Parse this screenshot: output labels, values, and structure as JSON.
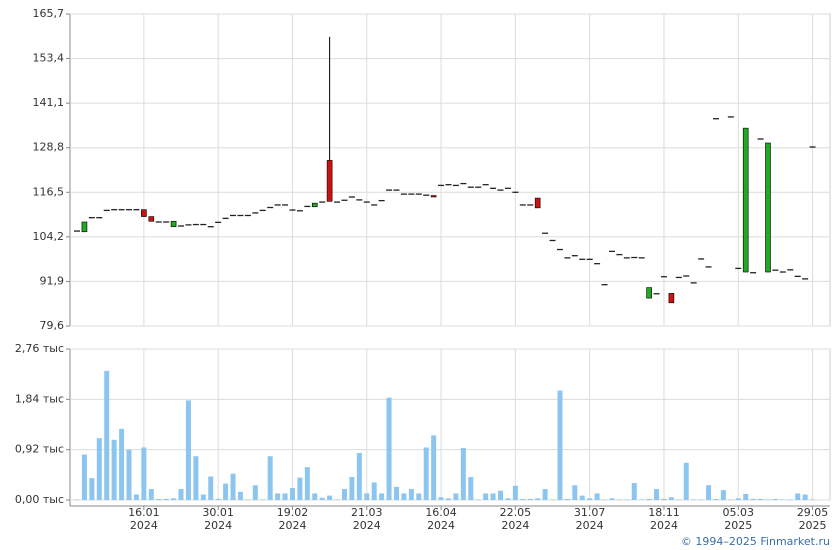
{
  "chart_data": [
    {
      "type": "candlestick",
      "open": [
        105.8,
        105.6,
        109.5,
        109.5,
        111.5,
        111.7,
        111.7,
        111.7,
        111.7,
        111.7,
        109.8,
        108.3,
        108.3,
        107.0,
        107.2,
        107.5,
        107.6,
        107.6,
        107.0,
        108.2,
        109.3,
        110.1,
        110.1,
        110.1,
        110.8,
        111.5,
        112.3,
        113.0,
        113.0,
        111.6,
        111.4,
        112.6,
        112.5,
        113.8,
        125.3,
        113.8,
        114.3,
        115.2,
        114.4,
        113.8,
        113.0,
        114.2,
        117.1,
        117.1,
        116.0,
        116.0,
        116.0,
        115.7,
        115.6,
        118.4,
        118.6,
        118.4,
        118.9,
        117.9,
        117.9,
        118.6,
        117.6,
        117.1,
        117.6,
        116.5,
        113.0,
        113.0,
        114.9,
        105.2,
        103.2,
        100.7,
        98.4,
        99.0,
        98.0,
        98.0,
        96.8,
        91.0,
        100.2,
        99.3,
        98.4,
        98.5,
        98.4,
        87.3,
        88.5,
        93.2,
        88.6,
        93.0,
        93.4,
        91.5,
        98.1,
        95.9,
        136.8,
        null,
        137.3,
        95.5,
        94.5,
        94.3,
        131.2,
        94.5,
        95.0,
        94.5,
        95.1,
        93.3,
        92.6,
        129.0
      ],
      "high": [
        105.8,
        108.3,
        109.5,
        109.5,
        111.5,
        111.7,
        111.7,
        111.7,
        111.7,
        111.7,
        109.8,
        108.3,
        108.3,
        108.5,
        107.2,
        107.5,
        107.6,
        107.6,
        107.0,
        108.2,
        109.3,
        110.1,
        110.1,
        110.1,
        110.8,
        111.5,
        112.3,
        113.0,
        113.0,
        111.6,
        111.4,
        112.6,
        113.5,
        113.8,
        159.4,
        113.8,
        114.3,
        115.2,
        114.4,
        113.8,
        113.0,
        114.2,
        117.1,
        117.1,
        116.0,
        116.0,
        116.0,
        115.7,
        115.6,
        118.4,
        118.6,
        118.4,
        118.9,
        117.9,
        117.9,
        118.6,
        117.6,
        117.1,
        117.6,
        116.5,
        113.0,
        113.0,
        114.9,
        105.2,
        103.2,
        100.7,
        98.4,
        99.0,
        98.0,
        98.0,
        96.8,
        91.0,
        100.2,
        99.3,
        98.4,
        98.5,
        98.4,
        90.2,
        88.5,
        93.2,
        88.6,
        93.0,
        93.4,
        91.5,
        98.1,
        95.9,
        136.8,
        null,
        137.3,
        95.5,
        134.2,
        94.3,
        131.2,
        130.1,
        95.0,
        94.5,
        95.1,
        93.3,
        92.6,
        129.0
      ],
      "low": [
        105.8,
        105.6,
        109.5,
        109.5,
        111.5,
        111.7,
        111.7,
        111.7,
        111.7,
        109.8,
        108.5,
        108.3,
        108.3,
        107.0,
        107.2,
        107.5,
        107.6,
        107.6,
        107.0,
        108.2,
        109.3,
        110.1,
        110.1,
        110.1,
        110.8,
        111.5,
        112.3,
        113.0,
        113.0,
        111.6,
        111.4,
        112.6,
        112.5,
        113.8,
        114.0,
        113.8,
        114.3,
        115.2,
        114.4,
        113.8,
        113.0,
        114.2,
        117.1,
        117.1,
        116.0,
        116.0,
        116.0,
        115.7,
        115.2,
        118.4,
        118.6,
        118.4,
        118.9,
        117.9,
        117.9,
        118.6,
        117.6,
        117.1,
        117.6,
        116.5,
        113.0,
        113.0,
        112.2,
        105.2,
        103.2,
        100.7,
        98.4,
        99.0,
        98.0,
        98.0,
        96.8,
        91.0,
        100.2,
        99.3,
        98.4,
        98.5,
        98.4,
        87.3,
        88.5,
        93.2,
        86.0,
        93.0,
        93.4,
        91.5,
        98.1,
        95.9,
        136.8,
        null,
        137.3,
        95.5,
        94.5,
        94.3,
        131.2,
        94.5,
        95.0,
        94.5,
        95.1,
        93.3,
        92.6,
        129.0
      ],
      "close": [
        105.8,
        108.3,
        109.5,
        109.5,
        111.5,
        111.7,
        111.7,
        111.7,
        111.7,
        109.8,
        108.5,
        108.3,
        108.3,
        108.5,
        107.2,
        107.5,
        107.6,
        107.6,
        107.0,
        108.2,
        109.3,
        110.1,
        110.1,
        110.1,
        110.8,
        111.5,
        112.3,
        113.0,
        113.0,
        111.6,
        111.4,
        112.6,
        113.5,
        113.8,
        114.0,
        113.8,
        114.3,
        115.2,
        114.4,
        113.8,
        113.0,
        114.2,
        117.1,
        117.1,
        116.0,
        116.0,
        116.0,
        115.7,
        115.2,
        118.4,
        118.6,
        118.4,
        118.9,
        117.9,
        117.9,
        118.6,
        117.6,
        117.1,
        117.6,
        116.5,
        113.0,
        113.0,
        112.2,
        105.2,
        103.2,
        100.7,
        98.4,
        99.0,
        98.0,
        98.0,
        96.8,
        91.0,
        100.2,
        99.3,
        98.4,
        98.5,
        98.4,
        90.2,
        88.5,
        93.2,
        86.0,
        93.0,
        93.4,
        91.5,
        98.1,
        95.9,
        136.8,
        null,
        137.3,
        95.5,
        134.2,
        94.3,
        131.2,
        130.1,
        95.0,
        94.5,
        95.1,
        93.3,
        92.6,
        129.0
      ],
      "up_color": "#22a822",
      "down_color": "#cc1111",
      "flat_color": "#222222",
      "ylim": [
        79.6,
        165.7
      ],
      "yticks": [
        {
          "value": 79.6,
          "label": "79,6"
        },
        {
          "value": 91.9,
          "label": "91,9"
        },
        {
          "value": 104.2,
          "label": "104,2"
        },
        {
          "value": 116.5,
          "label": "116,5"
        },
        {
          "value": 128.8,
          "label": "128,8"
        },
        {
          "value": 141.1,
          "label": "141,1"
        },
        {
          "value": 153.4,
          "label": "153,4"
        },
        {
          "value": 165.7,
          "label": "165,7"
        }
      ],
      "grid": true
    },
    {
      "type": "bar",
      "categories": [
        null,
        null,
        null,
        null,
        null,
        null,
        null,
        null,
        null,
        "16.01 2024",
        null,
        null,
        null,
        null,
        null,
        null,
        null,
        null,
        null,
        "30.01 2024",
        null,
        null,
        null,
        null,
        null,
        null,
        null,
        null,
        null,
        "19.02 2024",
        null,
        null,
        null,
        null,
        null,
        null,
        null,
        null,
        null,
        "21.03 2024",
        null,
        null,
        null,
        null,
        null,
        null,
        null,
        null,
        null,
        "16.04 2024",
        null,
        null,
        null,
        null,
        null,
        null,
        null,
        null,
        null,
        "22.05 2024",
        null,
        null,
        null,
        null,
        null,
        null,
        null,
        null,
        null,
        "31.07 2024",
        null,
        null,
        null,
        null,
        null,
        null,
        null,
        null,
        null,
        "18.11 2024",
        null,
        null,
        null,
        null,
        null,
        null,
        null,
        null,
        null,
        "05.03 2025",
        null,
        null,
        null,
        null,
        null,
        null,
        null,
        null,
        null,
        "29.05 2025"
      ],
      "values": [
        0.01,
        0.83,
        0.4,
        1.13,
        2.36,
        1.1,
        1.3,
        0.92,
        0.1,
        0.96,
        0.2,
        0.02,
        0.02,
        0.03,
        0.2,
        1.82,
        0.8,
        0.1,
        0.43,
        0.02,
        0.3,
        0.48,
        0.15,
        0.01,
        0.27,
        0.01,
        0.8,
        0.12,
        0.12,
        0.22,
        0.41,
        0.6,
        0.12,
        0.04,
        0.08,
        0.01,
        0.2,
        0.42,
        0.86,
        0.12,
        0.32,
        0.12,
        1.87,
        0.24,
        0.12,
        0.2,
        0.12,
        0.96,
        1.18,
        0.05,
        0.03,
        0.12,
        0.95,
        0.42,
        0.01,
        0.12,
        0.12,
        0.17,
        0.03,
        0.26,
        0.02,
        0.02,
        0.03,
        0.2,
        0.01,
        2.0,
        0.02,
        0.27,
        0.08,
        0.03,
        0.12,
        0.01,
        0.03,
        0.01,
        0.01,
        0.31,
        0.01,
        0.02,
        0.2,
        0.02,
        0.05,
        0.01,
        0.68,
        0.01,
        0.01,
        0.27,
        0.02,
        0.18,
        0.01,
        0.03,
        0.11,
        0.02,
        0.02,
        0.01,
        0.02,
        0.01,
        0.01,
        0.12,
        0.1,
        0.01
      ],
      "color": "#8cc6f0",
      "ylim": [
        0,
        2.76
      ],
      "yticks": [
        {
          "value": 0,
          "label": "0,00 тыс"
        },
        {
          "value": 0.92,
          "label": "0,92 тыс"
        },
        {
          "value": 1.84,
          "label": "1,84 тыс"
        },
        {
          "value": 2.76,
          "label": "2,76 тыс"
        }
      ],
      "grid": true
    }
  ],
  "footer": "© 1994–2025 Finmarket.ru"
}
